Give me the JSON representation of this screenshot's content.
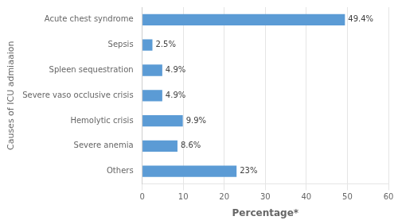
{
  "chart_data": {
    "type": "bar",
    "orientation": "horizontal",
    "categories": [
      "Acute chest syndrome",
      "Sepsis",
      "Spleen sequestration",
      "Severe vaso occlusive crisis",
      "Hemolytic crisis",
      "Severe anemia",
      "Others"
    ],
    "values": [
      49.4,
      2.5,
      4.9,
      4.9,
      9.9,
      8.6,
      23
    ],
    "value_labels": [
      "49.4%",
      "2.5%",
      "4.9%",
      "4.9%",
      "9.9%",
      "8.6%",
      "23%"
    ],
    "data_labels": true,
    "color": "#5b9bd5",
    "xlabel": "Percentage*",
    "ylabel": "Causes of ICU admiaaion",
    "xlim": [
      0,
      60
    ],
    "xticks": [
      0,
      10,
      20,
      30,
      40,
      50,
      60
    ],
    "grid": true
  }
}
